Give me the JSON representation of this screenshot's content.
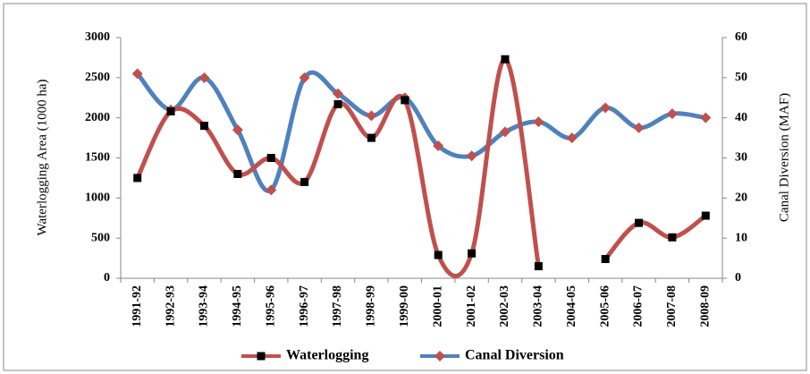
{
  "chart_data": {
    "type": "line",
    "categories": [
      "1991-92",
      "1992-93",
      "1993-94",
      "1994-95",
      "1995-96",
      "1996-97",
      "1997-98",
      "1998-99",
      "1999-00",
      "2000-01",
      "2001-02",
      "2002-03",
      "2003-04",
      "2004-05",
      "2005-06",
      "2006-07",
      "2007-08",
      "2008-09"
    ],
    "series": [
      {
        "name": "Waterlogging",
        "color": "#c0504d",
        "marker_color": "#000000",
        "marker": "square",
        "values": [
          1250,
          2080,
          1900,
          1300,
          1500,
          1200,
          2170,
          1750,
          2220,
          290,
          310,
          2730,
          150,
          null,
          240,
          690,
          510,
          780
        ]
      },
      {
        "name": "Canal Diversion",
        "color": "#4f81bd",
        "marker_color": "#c0504d",
        "marker": "diamond",
        "axis": "y2",
        "values": [
          51,
          42,
          50,
          37,
          22,
          50,
          46,
          40.5,
          45,
          33,
          30.5,
          36.5,
          39,
          35,
          42.5,
          37.5,
          41,
          40
        ]
      }
    ],
    "ylabel": "Waterlogging Area (1000 ha)",
    "y2label": "Canal Diversion (MAF)",
    "ylim": [
      0,
      3000
    ],
    "yticks": [
      0,
      500,
      1000,
      1500,
      2000,
      2500,
      3000
    ],
    "y2lim": [
      0,
      60
    ],
    "y2ticks": [
      0,
      10,
      20,
      30,
      40,
      50,
      60
    ],
    "legend": "bottom"
  }
}
